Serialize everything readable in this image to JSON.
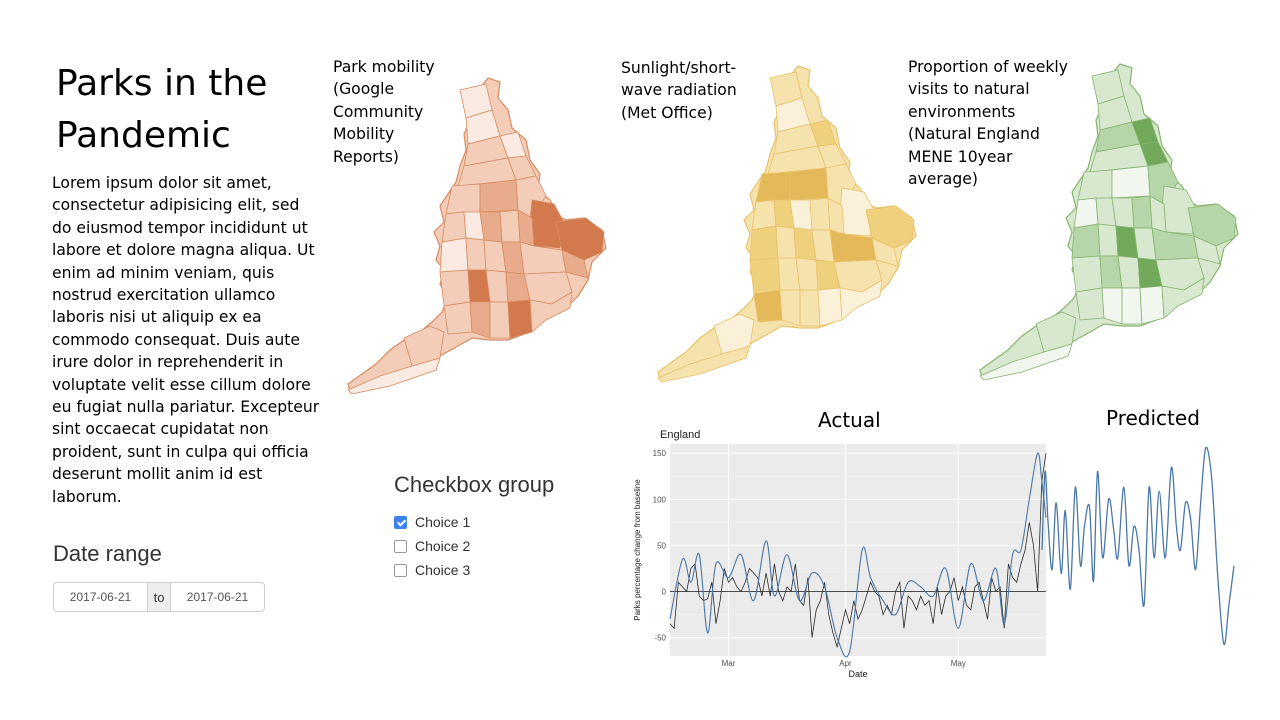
{
  "header": {
    "title": "Parks in the Pandemic"
  },
  "intro": {
    "body": "Lorem ipsum dolor sit amet, consectetur adipisicing elit, sed do eiusmod tempor incididunt ut labore et dolore magna aliqua. Ut enim ad minim veniam, quis nostrud exercitation ullamco laboris nisi ut aliquip ex ea commodo consequat. Duis aute irure dolor in reprehenderit in voluptate velit esse cillum dolore eu fugiat nulla pariatur. Excepteur sint occaecat cupidatat non proident, sunt in culpa qui officia deserunt mollit anim id est laborum."
  },
  "maps": [
    {
      "caption": "Park mobility (Google Community Mobility Reports)",
      "palette": [
        "#fbeae2",
        "#f3cdb8",
        "#e8ac8c",
        "#d27a4d"
      ],
      "stroke": "#d88a60"
    },
    {
      "caption": "Sunlight/short-wave radiation (Met Office)",
      "palette": [
        "#fbf1d9",
        "#f6e2ad",
        "#efd07d",
        "#e4b95a"
      ],
      "stroke": "#e8c26a"
    },
    {
      "caption": "Proportion of weekly visits to natural environments (Natural England MENE 10year average)",
      "palette": [
        "#f1f6ee",
        "#d7e8cf",
        "#b6d5a8",
        "#72a85a"
      ],
      "stroke": "#86b46f"
    }
  ],
  "checkbox_group": {
    "label": "Checkbox group",
    "choices": [
      {
        "label": "Choice 1",
        "checked": true
      },
      {
        "label": "Choice 2",
        "checked": false
      },
      {
        "label": "Choice 3",
        "checked": false
      }
    ]
  },
  "date_range": {
    "label": "Date range",
    "start": "2017-06-21",
    "separator": "to",
    "end": "2017-06-21"
  },
  "panels": {
    "actual_title": "Actual",
    "predicted_title": "Predicted"
  },
  "chart_data": [
    {
      "type": "line",
      "title": "England",
      "xlabel": "Date",
      "ylabel": "Parks percentage change from baseline",
      "xlim": [
        0,
        90
      ],
      "ylim": [
        -70,
        160
      ],
      "yticks": [
        -50,
        0,
        50,
        100,
        150
      ],
      "xticks": [
        {
          "x": 14,
          "label": "Mar"
        },
        {
          "x": 42,
          "label": "Apr"
        },
        {
          "x": 69,
          "label": "May"
        }
      ],
      "hline": 0,
      "grid": true,
      "background": "#ebebeb",
      "series": [
        {
          "color": "#2a2a2a",
          "smooth": false,
          "x": [
            0,
            1,
            2,
            3,
            4,
            5,
            6,
            7,
            8,
            9,
            10,
            11,
            12,
            13,
            14,
            15,
            16,
            17,
            18,
            19,
            20,
            21,
            22,
            23,
            24,
            25,
            26,
            27,
            28,
            29,
            30,
            31,
            32,
            33,
            34,
            35,
            36,
            37,
            38,
            39,
            40,
            41,
            42,
            43,
            44,
            45,
            46,
            47,
            48,
            49,
            50,
            51,
            52,
            53,
            54,
            55,
            56,
            57,
            58,
            59,
            60,
            61,
            62,
            63,
            64,
            65,
            66,
            67,
            68,
            69,
            70,
            71,
            72,
            73,
            74,
            75,
            76,
            77,
            78,
            79,
            80,
            81,
            82,
            83,
            84,
            85,
            86,
            87,
            88,
            89,
            90
          ],
          "y": [
            -35,
            -40,
            10,
            5,
            0,
            25,
            30,
            -5,
            -10,
            -8,
            10,
            -35,
            -10,
            25,
            10,
            15,
            5,
            0,
            10,
            25,
            20,
            15,
            -5,
            20,
            -5,
            30,
            0,
            -10,
            5,
            0,
            30,
            -10,
            -15,
            15,
            -50,
            -20,
            -10,
            10,
            -25,
            -45,
            -60,
            -40,
            -20,
            -35,
            -10,
            -30,
            -20,
            -5,
            10,
            0,
            -5,
            -25,
            -15,
            -25,
            0,
            10,
            -40,
            -5,
            -10,
            -20,
            -5,
            -15,
            -10,
            -35,
            5,
            -25,
            -5,
            0,
            15,
            -10,
            5,
            -15,
            -20,
            5,
            10,
            -10,
            -30,
            15,
            0,
            5,
            -40,
            30,
            15,
            10,
            30,
            45,
            75,
            50,
            0,
            120,
            150
          ]
        },
        {
          "color": "#4a78a8",
          "smooth": true,
          "x": [
            0,
            3,
            5,
            7,
            9,
            11,
            14,
            17,
            20,
            23,
            25,
            28,
            31,
            34,
            37,
            40,
            43,
            46,
            48,
            51,
            54,
            57,
            60,
            63,
            66,
            69,
            72,
            75,
            78,
            80,
            82,
            84,
            86,
            88,
            89,
            90
          ],
          "y": [
            -30,
            35,
            10,
            40,
            -45,
            30,
            15,
            40,
            -10,
            55,
            -5,
            40,
            -10,
            20,
            5,
            -50,
            -65,
            45,
            15,
            -10,
            -25,
            10,
            5,
            -5,
            25,
            -40,
            30,
            -10,
            25,
            -35,
            40,
            45,
            100,
            150,
            120,
            80
          ]
        }
      ]
    },
    {
      "type": "line",
      "title": "",
      "series": [
        {
          "color": "#4a78a8",
          "x": [
            0,
            3,
            6,
            10,
            14,
            19,
            23,
            28,
            33,
            38,
            42,
            47,
            51,
            55,
            60,
            66,
            71,
            75,
            81,
            86,
            91,
            96,
            101,
            106,
            111,
            116,
            122,
            128,
            133,
            137,
            142,
            147,
            152,
            157,
            162,
            168,
            174,
            180,
            185,
            190
          ],
          "y": [
            -20,
            80,
            15,
            -45,
            40,
            -50,
            30,
            -70,
            60,
            -40,
            10,
            35,
            -60,
            80,
            -30,
            45,
            5,
            -30,
            60,
            -40,
            10,
            -20,
            -90,
            60,
            -30,
            55,
            -30,
            85,
            10,
            -20,
            40,
            20,
            -45,
            40,
            110,
            70,
            -55,
            -140,
            -90,
            -40
          ]
        }
      ]
    }
  ]
}
